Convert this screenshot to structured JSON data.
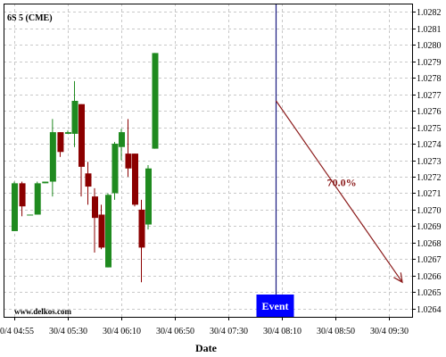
{
  "chart_data": {
    "type": "candlestick",
    "symbol_label": "6S 5 (CME)",
    "watermark": "www.delkos.com",
    "xlabel": "Date",
    "ylabel": "",
    "grid": true,
    "ylim": [
      1.02635,
      1.02825
    ],
    "y_ticks": [
      1.0264,
      1.0265,
      1.0266,
      1.0267,
      1.0268,
      1.0269,
      1.027,
      1.0271,
      1.0272,
      1.0273,
      1.0274,
      1.0275,
      1.0276,
      1.0277,
      1.0278,
      1.0279,
      1.028,
      1.0281,
      1.0282
    ],
    "y_tick_labels": [
      "1.0264",
      "1.0265",
      "1.0266",
      "1.0267",
      "1.0268",
      "1.0269",
      "1.0270",
      "1.0271",
      "1.0272",
      "1.0273",
      "1.0274",
      "1.0275",
      "1.0276",
      "1.0277",
      "1.0278",
      "1.0279",
      "1.0280",
      "1.0281",
      "1.0282"
    ],
    "x_ticks": [
      "30/4 04:55",
      "30/4 05:30",
      "30/4 06:10",
      "30/4 06:50",
      "30/4 07:30",
      "30/4 08:10",
      "30/4 08:50",
      "30/4 09:30"
    ],
    "bar_minutes": 5,
    "first_bar_time": "30/4 04:55",
    "candles": [
      {
        "time": "04:55",
        "open": 1.02687,
        "high": 1.02717,
        "low": 1.02687,
        "close": 1.02716
      },
      {
        "time": "05:00",
        "open": 1.02716,
        "high": 1.02717,
        "low": 1.02696,
        "close": 1.02702
      },
      {
        "time": "05:05",
        "open": 1.02697,
        "high": 1.02697,
        "low": 1.02697,
        "close": 1.02697
      },
      {
        "time": "05:10",
        "open": 1.02697,
        "high": 1.02717,
        "low": 1.02697,
        "close": 1.02716
      },
      {
        "time": "05:15",
        "open": 1.02716,
        "high": 1.02717,
        "low": 1.02716,
        "close": 1.02717
      },
      {
        "time": "05:20",
        "open": 1.02717,
        "high": 1.02755,
        "low": 1.02708,
        "close": 1.02747
      },
      {
        "time": "05:25",
        "open": 1.02747,
        "high": 1.02747,
        "low": 1.02732,
        "close": 1.02735
      },
      {
        "time": "05:30",
        "open": 1.02746,
        "high": 1.02748,
        "low": 1.02746,
        "close": 1.02747
      },
      {
        "time": "05:35",
        "open": 1.02746,
        "high": 1.02778,
        "low": 1.02738,
        "close": 1.02766
      },
      {
        "time": "05:40",
        "open": 1.02764,
        "high": 1.02764,
        "low": 1.02708,
        "close": 1.02726
      },
      {
        "time": "05:45",
        "open": 1.02722,
        "high": 1.02729,
        "low": 1.02703,
        "close": 1.02714
      },
      {
        "time": "05:50",
        "open": 1.02708,
        "high": 1.02713,
        "low": 1.02674,
        "close": 1.02695
      },
      {
        "time": "05:55",
        "open": 1.02697,
        "high": 1.02703,
        "low": 1.02676,
        "close": 1.02677
      },
      {
        "time": "06:00",
        "open": 1.02665,
        "high": 1.0271,
        "low": 1.02665,
        "close": 1.02709
      },
      {
        "time": "06:05",
        "open": 1.0271,
        "high": 1.02741,
        "low": 1.02706,
        "close": 1.0274
      },
      {
        "time": "06:10",
        "open": 1.02738,
        "high": 1.02749,
        "low": 1.0273,
        "close": 1.02747
      },
      {
        "time": "06:15",
        "open": 1.02734,
        "high": 1.02755,
        "low": 1.0272,
        "close": 1.02725
      },
      {
        "time": "06:20",
        "open": 1.02734,
        "high": 1.02734,
        "low": 1.02702,
        "close": 1.02703
      },
      {
        "time": "06:25",
        "open": 1.027,
        "high": 1.02706,
        "low": 1.02656,
        "close": 1.02677
      },
      {
        "time": "06:30",
        "open": 1.02691,
        "high": 1.02727,
        "low": 1.02688,
        "close": 1.02725
      },
      {
        "time": "06:35",
        "open": 1.02737,
        "high": 1.02795,
        "low": 1.02737,
        "close": 1.02795
      }
    ],
    "up_color": "#1f8a1f",
    "down_color": "#8b0000",
    "event": {
      "label": "Event",
      "time": "30/4 08:05",
      "line_color": "#1a1a80",
      "label_bg": "#0000ff",
      "label_color": "#ffffff"
    },
    "projection": {
      "label": "70.0%",
      "color": "#8b1a1a",
      "start_time": "30/4 08:05",
      "start_value": 1.02766,
      "end_time": "30/4 09:40",
      "end_value": 1.02656
    }
  }
}
